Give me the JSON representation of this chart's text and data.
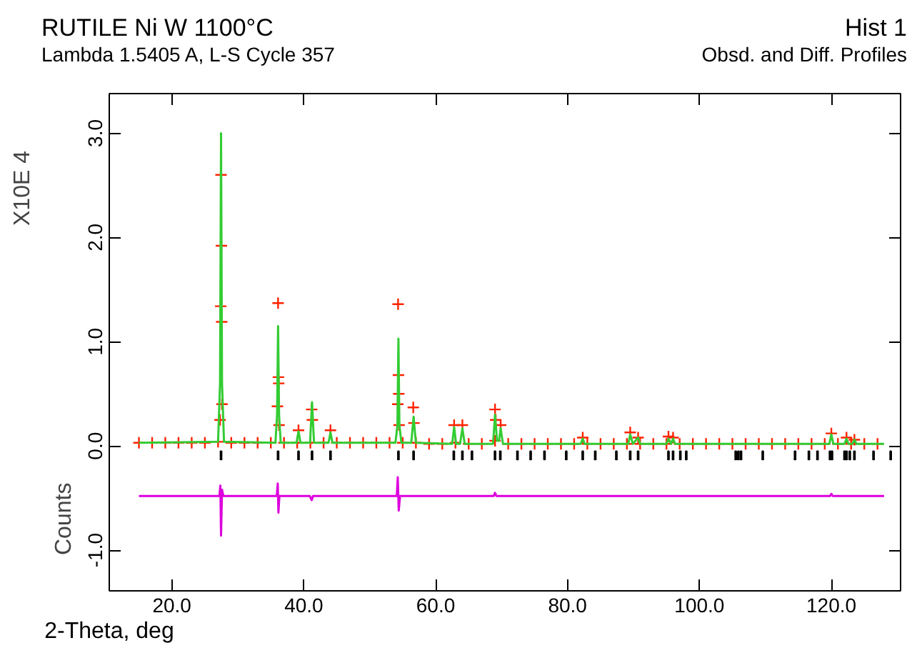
{
  "chart_data": {
    "type": "line",
    "title": "RUTILE Ni W 1100°C",
    "subtitle": "Lambda 1.5405 A, L-S Cycle 357",
    "xlabel": "2-Theta, deg",
    "ylabel": "Counts",
    "annotations": [
      "X10E 4",
      "Hist 1",
      "Obsd. and Diff. Profiles"
    ],
    "xlim": [
      10.5,
      130.5
    ],
    "ylim": [
      -1.39,
      3.38
    ],
    "xticks": [
      {
        "value": 20,
        "label": "20.0"
      },
      {
        "value": 40,
        "label": "40.0"
      },
      {
        "value": 60,
        "label": "60.0"
      },
      {
        "value": 80,
        "label": "80.0"
      },
      {
        "value": 100,
        "label": "100.0"
      },
      {
        "value": 120,
        "label": "120.0"
      }
    ],
    "yticks": [
      {
        "value": -1,
        "label": "-1.0"
      },
      {
        "value": 0,
        "label": "0.0"
      },
      {
        "value": 1,
        "label": "1.0"
      },
      {
        "value": 2,
        "label": "2.0"
      },
      {
        "value": 3,
        "label": "3.0"
      }
    ],
    "grid": false,
    "series": [
      {
        "type": "scatter",
        "marker": "cross",
        "color": "#ff2200",
        "x": [
          15,
          17,
          19,
          21,
          23,
          25,
          27,
          29,
          31,
          33,
          35,
          37,
          39,
          41,
          43,
          45,
          47,
          49,
          51,
          53,
          55,
          57,
          59,
          61,
          63,
          65,
          67,
          69,
          71,
          73,
          75,
          77,
          79,
          81,
          83,
          85,
          87,
          89,
          91,
          93,
          95,
          97,
          99,
          101,
          103,
          105,
          107,
          109,
          111,
          113,
          115,
          117,
          119,
          121,
          123,
          125,
          127,
          27.3,
          27.4,
          27.45,
          27.5,
          27.55,
          27.6,
          36.0,
          36.1,
          36.15,
          36.2,
          36.25,
          39.2,
          41.2,
          41.3,
          44.05,
          54.25,
          54.3,
          54.35,
          54.4,
          54.45,
          56.6,
          56.7,
          62.8,
          64.05,
          69.0,
          69.1,
          69.85,
          82.3,
          89.5,
          90.7,
          95.3,
          96.0,
          120.0,
          122.3,
          123.5
        ],
        "values": [
          0.03,
          0.03,
          0.03,
          0.03,
          0.03,
          0.03,
          0.04,
          0.03,
          0.03,
          0.03,
          0.03,
          0.03,
          0.03,
          0.03,
          0.03,
          0.03,
          0.03,
          0.03,
          0.03,
          0.03,
          0.03,
          0.03,
          0.02,
          0.02,
          0.03,
          0.02,
          0.02,
          0.05,
          0.02,
          0.02,
          0.02,
          0.02,
          0.02,
          0.02,
          0.02,
          0.02,
          0.02,
          0.02,
          0.02,
          0.02,
          0.02,
          0.02,
          0.02,
          0.02,
          0.02,
          0.02,
          0.02,
          0.02,
          0.02,
          0.02,
          0.02,
          0.02,
          0.02,
          0.02,
          0.02,
          0.02,
          0.02,
          0.25,
          1.34,
          2.6,
          1.92,
          1.19,
          0.4,
          0.38,
          1.37,
          0.66,
          0.6,
          0.2,
          0.15,
          0.35,
          0.25,
          0.15,
          0.4,
          1.36,
          0.68,
          0.5,
          0.2,
          0.37,
          0.22,
          0.2,
          0.2,
          0.35,
          0.25,
          0.2,
          0.08,
          0.13,
          0.08,
          0.09,
          0.08,
          0.12,
          0.08,
          0.06
        ]
      },
      {
        "color": "#33cc33",
        "x": [
          15,
          27.0,
          27.3,
          27.45,
          27.6,
          27.9,
          35.7,
          35.95,
          36.1,
          36.25,
          36.5,
          38.9,
          39.2,
          39.5,
          40.95,
          41.25,
          41.55,
          43.75,
          44.05,
          44.35,
          53.9,
          54.2,
          54.35,
          54.5,
          54.8,
          56.3,
          56.65,
          57.0,
          62.5,
          62.8,
          63.1,
          63.7,
          64.05,
          64.4,
          68.7,
          69.0,
          69.3,
          69.6,
          69.85,
          70.2,
          82.0,
          82.3,
          82.6,
          89.2,
          89.5,
          89.9,
          90.7,
          91.0,
          95.0,
          95.3,
          95.7,
          96.0,
          96.3,
          119.7,
          120.0,
          120.3,
          122.0,
          122.3,
          122.6,
          123.2,
          123.5,
          123.8,
          128
        ],
        "values": [
          0.03,
          0.04,
          0.6,
          3.0,
          0.6,
          0.04,
          0.03,
          0.3,
          1.15,
          0.3,
          0.03,
          0.03,
          0.14,
          0.03,
          0.03,
          0.42,
          0.03,
          0.03,
          0.13,
          0.03,
          0.03,
          0.2,
          1.03,
          0.2,
          0.03,
          0.03,
          0.28,
          0.03,
          0.02,
          0.18,
          0.02,
          0.02,
          0.17,
          0.02,
          0.02,
          0.3,
          0.05,
          0.05,
          0.17,
          0.02,
          0.02,
          0.07,
          0.02,
          0.02,
          0.11,
          0.02,
          0.08,
          0.02,
          0.02,
          0.07,
          0.02,
          0.07,
          0.02,
          0.02,
          0.11,
          0.02,
          0.02,
          0.07,
          0.02,
          0.02,
          0.06,
          0.02,
          0.02
        ]
      },
      {
        "color": "#dd00dd",
        "x": [
          15,
          27.2,
          27.35,
          27.45,
          27.6,
          27.8,
          35.9,
          36.05,
          36.15,
          36.3,
          40.9,
          41.2,
          41.4,
          54.1,
          54.25,
          54.4,
          54.6,
          68.8,
          69.0,
          69.2,
          119.8,
          120.0,
          120.2,
          128
        ],
        "values": [
          -0.48,
          -0.48,
          -0.38,
          -0.86,
          -0.42,
          -0.48,
          -0.48,
          -0.36,
          -0.64,
          -0.48,
          -0.48,
          -0.52,
          -0.48,
          -0.48,
          -0.3,
          -0.62,
          -0.48,
          -0.48,
          -0.45,
          -0.48,
          -0.48,
          -0.46,
          -0.48,
          -0.48
        ]
      },
      {
        "type": "bar",
        "color": "#000000",
        "x": [
          27.45,
          36.1,
          39.2,
          41.25,
          44.05,
          54.35,
          56.65,
          62.75,
          64.05,
          65.5,
          69.0,
          69.8,
          72.4,
          74.4,
          76.5,
          79.8,
          82.3,
          84.2,
          87.4,
          89.5,
          90.7,
          95.3,
          96.0,
          97.1,
          98.0,
          105.5,
          105.9,
          106.3,
          109.6,
          114.5,
          116.6,
          117.9,
          119.8,
          120.1,
          122.0,
          122.3,
          122.8,
          123.5,
          126.4,
          129.0
        ],
        "base": [
          -0.13,
          -0.13,
          -0.13,
          -0.13,
          -0.13,
          -0.13,
          -0.13,
          -0.13,
          -0.13,
          -0.13,
          -0.13,
          -0.13,
          -0.13,
          -0.13,
          -0.13,
          -0.13,
          -0.13,
          -0.13,
          -0.13,
          -0.13,
          -0.13,
          -0.13,
          -0.13,
          -0.13,
          -0.13,
          -0.13,
          -0.13,
          -0.13,
          -0.13,
          -0.13,
          -0.13,
          -0.13,
          -0.13,
          -0.13,
          -0.13,
          -0.13,
          -0.13,
          -0.13,
          -0.13,
          -0.13
        ],
        "values": [
          0.08,
          0.08,
          0.08,
          0.08,
          0.08,
          0.08,
          0.08,
          0.08,
          0.08,
          0.08,
          0.08,
          0.08,
          0.08,
          0.08,
          0.08,
          0.08,
          0.08,
          0.08,
          0.08,
          0.08,
          0.08,
          0.08,
          0.08,
          0.08,
          0.08,
          0.08,
          0.08,
          0.08,
          0.08,
          0.08,
          0.08,
          0.08,
          0.08,
          0.08,
          0.08,
          0.08,
          0.08,
          0.08,
          0.08,
          0.08
        ]
      }
    ]
  }
}
